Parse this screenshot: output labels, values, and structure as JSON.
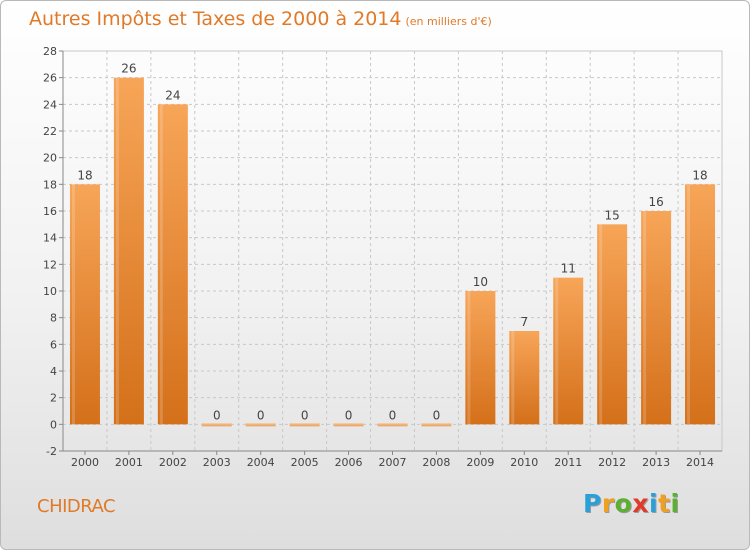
{
  "title": "Autres Impôts et Taxes de 2000 à 2014",
  "subtitle": "(en milliers d'€)",
  "place": "CHIDRAC",
  "logo": {
    "letters": [
      "P",
      "r",
      "o",
      "x",
      "i",
      "t",
      "i"
    ],
    "colors": [
      "#2aa0d8",
      "#f0a020",
      "#5cb030",
      "#e03a2a",
      "#2aa0d8",
      "#f0a020",
      "#5cb030"
    ]
  },
  "colors": {
    "title": "#e07a28",
    "bar_light": "#f7a558",
    "bar_dark": "#d4701a",
    "grid": "#c8c8c8"
  },
  "chart_data": {
    "type": "bar",
    "categories": [
      "2000",
      "2001",
      "2002",
      "2003",
      "2004",
      "2005",
      "2006",
      "2007",
      "2008",
      "2009",
      "2010",
      "2011",
      "2012",
      "2013",
      "2014"
    ],
    "values": [
      18,
      26,
      24,
      0,
      0,
      0,
      0,
      0,
      0,
      10,
      7,
      11,
      15,
      16,
      18
    ],
    "data_labels": [
      "18",
      "26",
      "24",
      "0",
      "0",
      "0",
      "0",
      "0",
      "0",
      "10",
      "7",
      "11",
      "15",
      "16",
      "18"
    ],
    "yticks": [
      -2,
      0,
      2,
      4,
      6,
      8,
      10,
      12,
      14,
      16,
      18,
      20,
      22,
      24,
      26,
      28
    ],
    "ylim": [
      -2,
      28
    ],
    "grid": true
  }
}
